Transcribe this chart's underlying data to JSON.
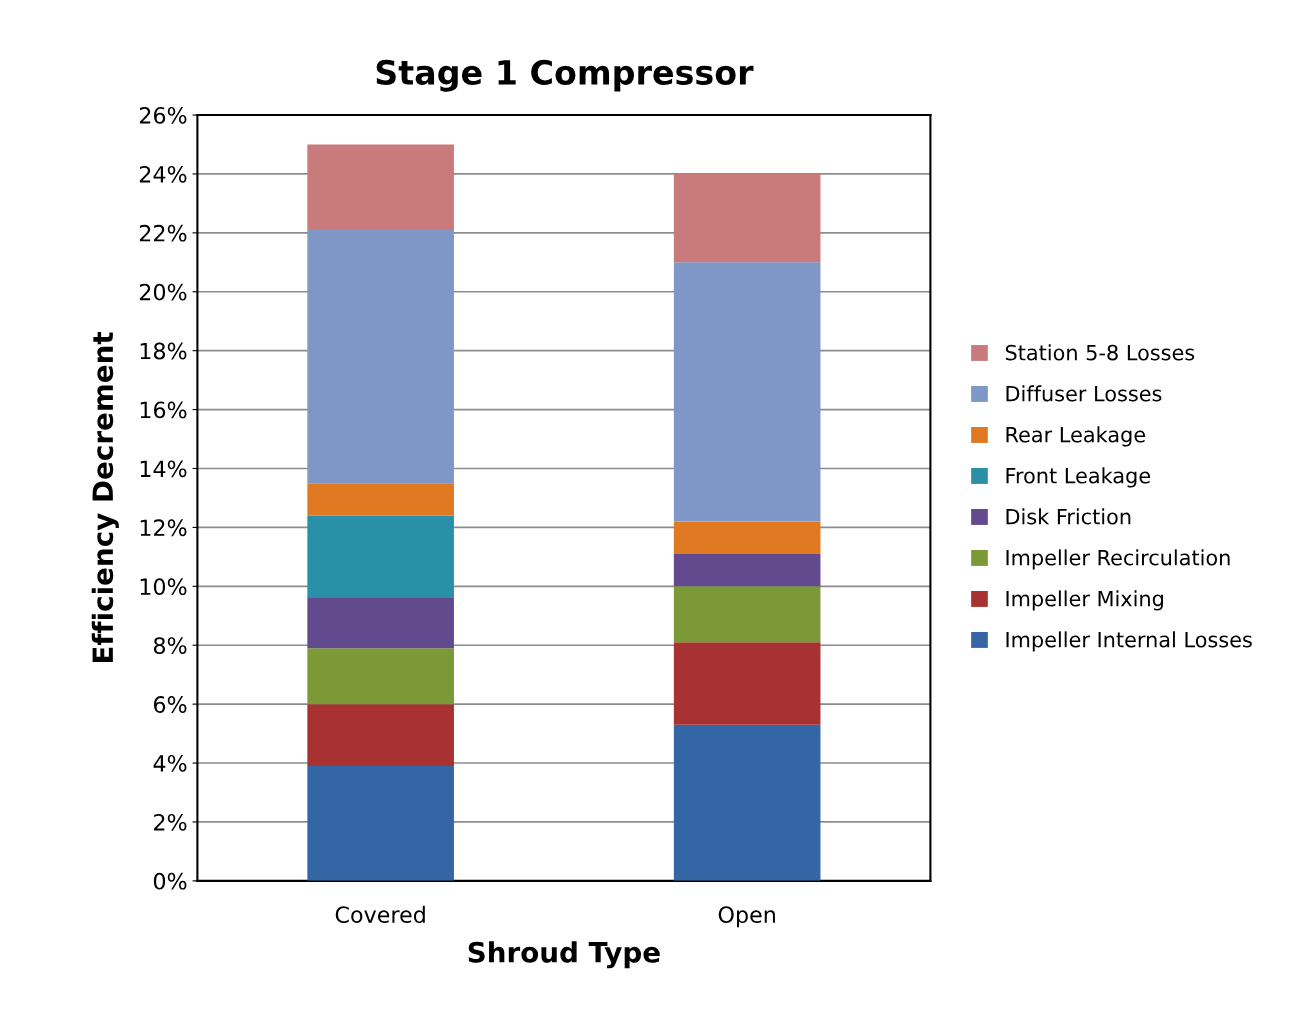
{
  "chart_data": {
    "type": "bar",
    "stacked": true,
    "title": "Stage 1 Compressor",
    "xlabel": "Shroud Type",
    "ylabel": "Efficiency Decrement",
    "categories": [
      "Covered",
      "Open"
    ],
    "series": [
      {
        "name": "Impeller Internal Losses",
        "color": "#3465a4",
        "values": [
          3.9,
          5.3
        ]
      },
      {
        "name": "Impeller Mixing",
        "color": "#a83232",
        "values": [
          2.1,
          2.8
        ]
      },
      {
        "name": "Impeller Recirculation",
        "color": "#7b9a37",
        "values": [
          1.9,
          1.9
        ]
      },
      {
        "name": "Disk Friction",
        "color": "#634a8f",
        "values": [
          1.7,
          1.1
        ]
      },
      {
        "name": "Front Leakage",
        "color": "#2a90aa",
        "values": [
          2.8,
          0
        ]
      },
      {
        "name": "Rear Leakage",
        "color": "#e07a22",
        "values": [
          1.1,
          1.1
        ]
      },
      {
        "name": "Diffuser Losses",
        "color": "#7f97c6",
        "values": [
          8.6,
          8.8
        ]
      },
      {
        "name": "Station 5-8 Losses",
        "color": "#c97b7b",
        "values": [
          2.9,
          3.0
        ]
      }
    ],
    "ylim": [
      0,
      26
    ],
    "yticks": [
      {
        "value": 0,
        "label": "0%"
      },
      {
        "value": 2,
        "label": "2%"
      },
      {
        "value": 4,
        "label": "4%"
      },
      {
        "value": 6,
        "label": "6%"
      },
      {
        "value": 8,
        "label": "8%"
      },
      {
        "value": 10,
        "label": "10%"
      },
      {
        "value": 12,
        "label": "12%"
      },
      {
        "value": 14,
        "label": "14%"
      },
      {
        "value": 16,
        "label": "16%"
      },
      {
        "value": 18,
        "label": "18%"
      },
      {
        "value": 20,
        "label": "20%"
      },
      {
        "value": 22,
        "label": "22%"
      },
      {
        "value": 24,
        "label": "24%"
      },
      {
        "value": 26,
        "label": "26%"
      }
    ],
    "grid": "y",
    "legend": "right"
  }
}
